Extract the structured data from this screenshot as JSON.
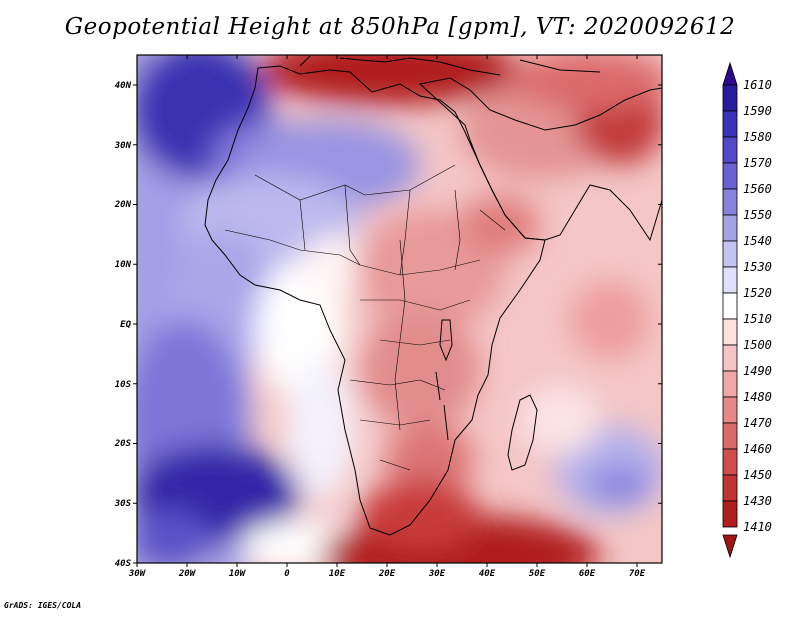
{
  "title": "Geopotential Height at 850hPa [gpm], VT: 2020092612",
  "footer": "GrADS: IGES/COLA",
  "map": {
    "lat_labels": [
      "40N",
      "30N",
      "20N",
      "10N",
      "EQ",
      "10S",
      "20S",
      "30S",
      "40S"
    ],
    "lon_labels": [
      "30W",
      "20W",
      "10W",
      "0",
      "10E",
      "20E",
      "30E",
      "40E",
      "50E",
      "60E",
      "70E"
    ]
  },
  "colorbar": {
    "levels": [
      "1610",
      "1590",
      "1580",
      "1570",
      "1560",
      "1550",
      "1540",
      "1530",
      "1520",
      "1510",
      "1500",
      "1490",
      "1480",
      "1470",
      "1460",
      "1450",
      "1430",
      "1410"
    ],
    "colors": {
      "top_arrow": "#2c0a8e",
      "bands": [
        "#2a1aa0",
        "#3a32b8",
        "#5048c8",
        "#6a62d4",
        "#8882dc",
        "#a6a2e6",
        "#c4c2f0",
        "#e0e0fa",
        "#ffffff",
        "#fbe0e0",
        "#f6c4c4",
        "#eea6a6",
        "#e68888",
        "#dc6a6a",
        "#d04c4c",
        "#c23434",
        "#b01e1e"
      ],
      "bottom_arrow": "#a01414"
    }
  }
}
